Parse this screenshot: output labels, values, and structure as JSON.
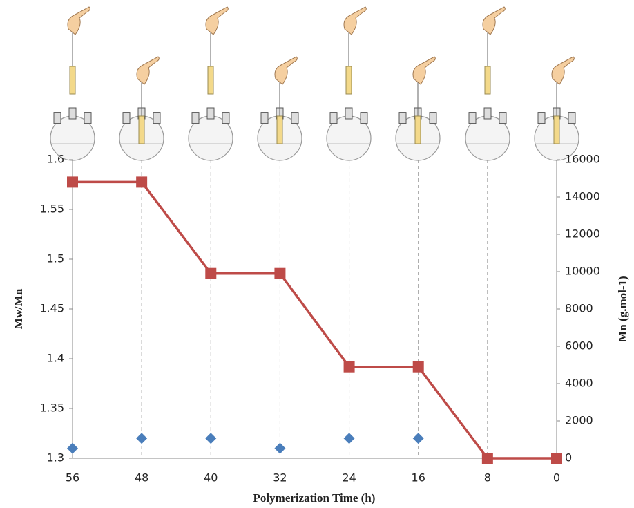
{
  "chart_data": {
    "type": "line",
    "x_label": "Polymerization Time (h)",
    "y_label": "Mw/Mn",
    "y2_label": "Mn (g.mol-1)",
    "x": [
      56,
      48,
      40,
      32,
      24,
      16,
      8,
      0
    ],
    "xlim": [
      56,
      0
    ],
    "xticks": [
      56,
      48,
      40,
      32,
      24,
      16,
      8,
      0
    ],
    "ylim": [
      1.3,
      1.6
    ],
    "yticks": [
      1.3,
      1.35,
      1.4,
      1.45,
      1.5,
      1.55,
      1.6
    ],
    "y2lim": [
      0,
      16000
    ],
    "y2ticks": [
      0,
      2000,
      4000,
      6000,
      8000,
      10000,
      12000,
      14000,
      16000
    ],
    "xgrid": true,
    "series": [
      {
        "color": "#4a7ebb",
        "marker": "diamond",
        "line": false,
        "values": [
          1.31,
          1.32,
          1.32,
          1.31,
          1.32,
          1.32,
          null,
          null
        ]
      },
      {
        "color": "#be4b48",
        "marker": "square",
        "line": true,
        "axis": "y2",
        "values": [
          14800,
          14800,
          9900,
          9900,
          4900,
          4900,
          0,
          0
        ]
      }
    ]
  }
}
